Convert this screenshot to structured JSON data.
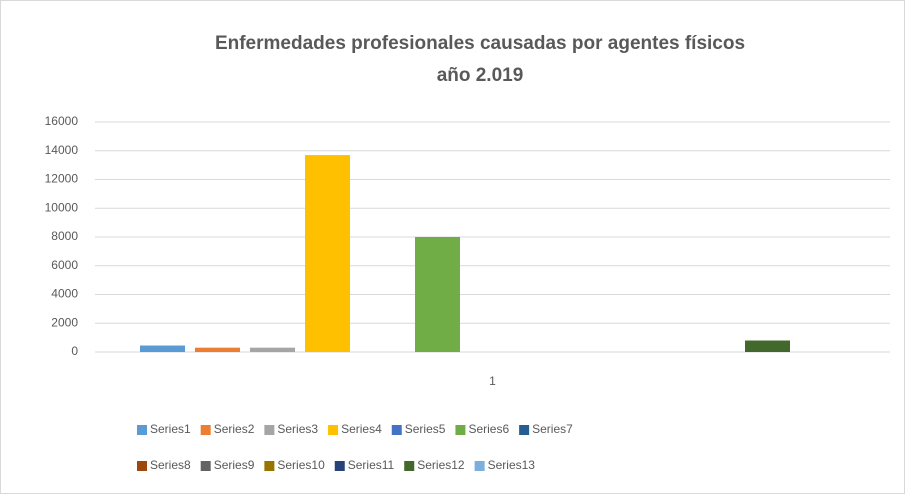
{
  "chart_data": {
    "type": "bar",
    "title": [
      "Enfermedades profesionales causadas por agentes físicos",
      "año 2.019"
    ],
    "categories": [
      "1"
    ],
    "series": [
      {
        "name": "Series1",
        "color": "#5b9bd5",
        "values": [
          450
        ]
      },
      {
        "name": "Series2",
        "color": "#ed7d31",
        "values": [
          300
        ]
      },
      {
        "name": "Series3",
        "color": "#a5a5a5",
        "values": [
          300
        ]
      },
      {
        "name": "Series4",
        "color": "#ffc000",
        "values": [
          13700
        ]
      },
      {
        "name": "Series5",
        "color": "#4472c4",
        "values": [
          0
        ]
      },
      {
        "name": "Series6",
        "color": "#70ad47",
        "values": [
          8000
        ]
      },
      {
        "name": "Series7",
        "color": "#255e91",
        "values": [
          0
        ]
      },
      {
        "name": "Series8",
        "color": "#9e480e",
        "values": [
          0
        ]
      },
      {
        "name": "Series9",
        "color": "#636363",
        "values": [
          0
        ]
      },
      {
        "name": "Series10",
        "color": "#997300",
        "values": [
          0
        ]
      },
      {
        "name": "Series11",
        "color": "#264478",
        "values": [
          0
        ]
      },
      {
        "name": "Series12",
        "color": "#43682b",
        "values": [
          800
        ]
      },
      {
        "name": "Series13",
        "color": "#7cafdd",
        "values": [
          0
        ]
      }
    ],
    "ylim": [
      0,
      16000
    ],
    "yticks": [
      0,
      2000,
      4000,
      6000,
      8000,
      10000,
      12000,
      14000,
      16000
    ],
    "grid": true,
    "legend": "bottom"
  }
}
